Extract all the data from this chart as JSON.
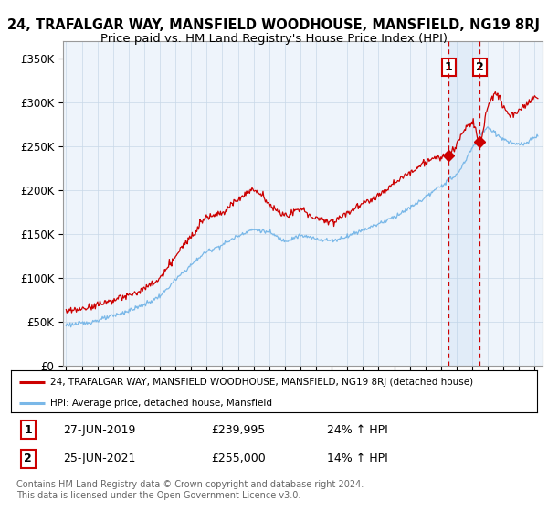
{
  "title": "24, TRAFALGAR WAY, MANSFIELD WOODHOUSE, MANSFIELD, NG19 8RJ",
  "subtitle": "Price paid vs. HM Land Registry's House Price Index (HPI)",
  "ylabel_ticks": [
    "£0",
    "£50K",
    "£100K",
    "£150K",
    "£200K",
    "£250K",
    "£300K",
    "£350K"
  ],
  "ytick_values": [
    0,
    50000,
    100000,
    150000,
    200000,
    250000,
    300000,
    350000
  ],
  "ylim": [
    0,
    370000
  ],
  "xlim_start": 1994.8,
  "xlim_end": 2025.5,
  "transaction1": {
    "date": 2019.49,
    "price": 239995,
    "label": "1",
    "date_str": "27-JUN-2019",
    "pct_str": "24% ↑ HPI"
  },
  "transaction2": {
    "date": 2021.48,
    "price": 255000,
    "label": "2",
    "date_str": "25-JUN-2021",
    "pct_str": "14% ↑ HPI"
  },
  "hpi_color": "#7ab8e8",
  "price_color": "#cc0000",
  "background_color": "#ffffff",
  "plot_bg_color": "#eef4fb",
  "grid_color": "#c8d8e8",
  "legend_label_red": "24, TRAFALGAR WAY, MANSFIELD WOODHOUSE, MANSFIELD, NG19 8RJ (detached house)",
  "legend_label_blue": "HPI: Average price, detached house, Mansfield",
  "table_row1": [
    "1",
    "27-JUN-2019",
    "£239,995",
    "24% ↑ HPI"
  ],
  "table_row2": [
    "2",
    "25-JUN-2021",
    "£255,000",
    "14% ↑ HPI"
  ],
  "footnote": "Contains HM Land Registry data © Crown copyright and database right 2024.\nThis data is licensed under the Open Government Licence v3.0.",
  "title_fontsize": 10.5,
  "subtitle_fontsize": 9.5,
  "hpi_keypoints": [
    [
      1995.0,
      47000
    ],
    [
      1996.0,
      48500
    ],
    [
      1997.0,
      52000
    ],
    [
      1998.0,
      57000
    ],
    [
      1999.0,
      63000
    ],
    [
      2000.0,
      70000
    ],
    [
      2001.0,
      80000
    ],
    [
      2002.0,
      98000
    ],
    [
      2003.0,
      115000
    ],
    [
      2004.0,
      130000
    ],
    [
      2005.0,
      138000
    ],
    [
      2006.0,
      148000
    ],
    [
      2007.0,
      155000
    ],
    [
      2008.0,
      152000
    ],
    [
      2009.0,
      143000
    ],
    [
      2010.0,
      148000
    ],
    [
      2011.0,
      145000
    ],
    [
      2012.0,
      143000
    ],
    [
      2013.0,
      148000
    ],
    [
      2014.0,
      155000
    ],
    [
      2015.0,
      162000
    ],
    [
      2016.0,
      170000
    ],
    [
      2017.0,
      180000
    ],
    [
      2018.0,
      192000
    ],
    [
      2019.0,
      205000
    ],
    [
      2019.5,
      212000
    ],
    [
      2020.0,
      218000
    ],
    [
      2021.0,
      248000
    ],
    [
      2022.0,
      270000
    ],
    [
      2023.0,
      258000
    ],
    [
      2024.0,
      252000
    ],
    [
      2025.0,
      260000
    ]
  ],
  "price_keypoints": [
    [
      1995.0,
      62000
    ],
    [
      1996.0,
      65000
    ],
    [
      1997.0,
      70000
    ],
    [
      1998.0,
      75000
    ],
    [
      1999.0,
      80000
    ],
    [
      2000.0,
      88000
    ],
    [
      2001.0,
      100000
    ],
    [
      2002.0,
      125000
    ],
    [
      2003.0,
      148000
    ],
    [
      2004.0,
      170000
    ],
    [
      2005.0,
      175000
    ],
    [
      2006.0,
      190000
    ],
    [
      2007.0,
      200000
    ],
    [
      2007.5,
      195000
    ],
    [
      2008.0,
      185000
    ],
    [
      2009.0,
      172000
    ],
    [
      2010.0,
      178000
    ],
    [
      2011.0,
      168000
    ],
    [
      2012.0,
      165000
    ],
    [
      2013.0,
      175000
    ],
    [
      2014.0,
      185000
    ],
    [
      2015.0,
      195000
    ],
    [
      2016.0,
      208000
    ],
    [
      2017.0,
      220000
    ],
    [
      2018.0,
      232000
    ],
    [
      2019.0,
      238000
    ],
    [
      2019.49,
      239995
    ],
    [
      2020.0,
      252000
    ],
    [
      2020.5,
      268000
    ],
    [
      2021.0,
      278000
    ],
    [
      2021.48,
      255000
    ],
    [
      2022.0,
      295000
    ],
    [
      2022.5,
      310000
    ],
    [
      2023.0,
      295000
    ],
    [
      2023.5,
      285000
    ],
    [
      2024.0,
      292000
    ],
    [
      2025.0,
      305000
    ]
  ]
}
